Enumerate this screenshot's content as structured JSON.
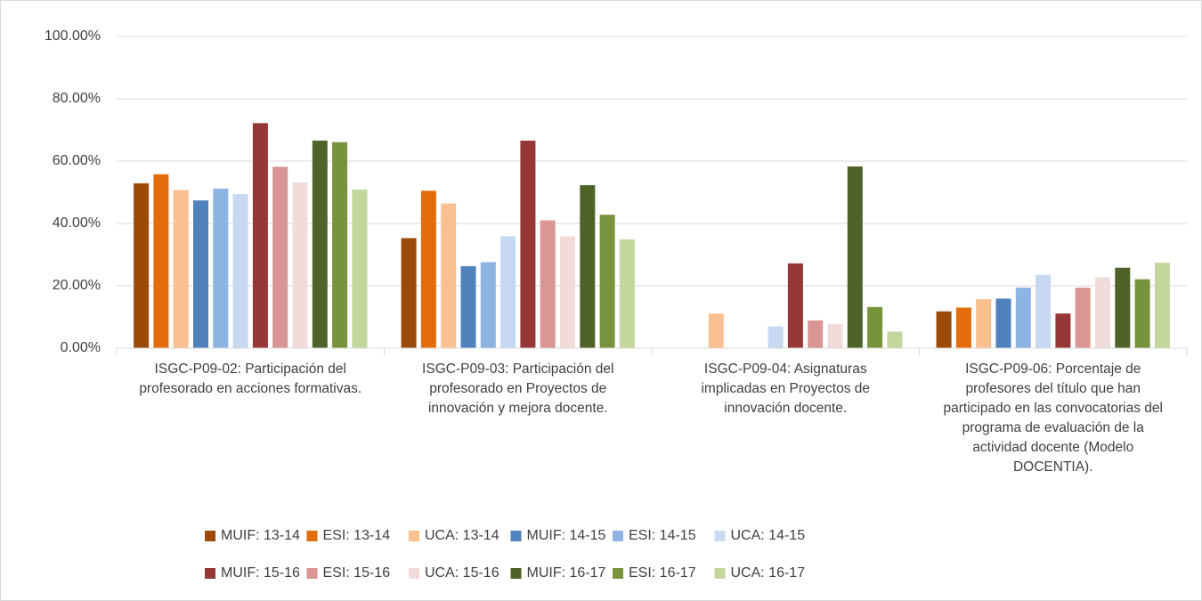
{
  "chart_data": {
    "type": "bar",
    "categories": [
      "ISGC-P09-02: Participación del profesorado en acciones formativas.",
      "ISGC-P09-03: Participación del profesorado en Proyectos de innovación y mejora docente.",
      "ISGC-P09-04: Asignaturas implicadas en Proyectos de innovación docente.",
      "ISGC-P09-06: Porcentaje de profesores del título que han participado en las convocatorias del programa de evaluación de la actividad docente (Modelo DOCENTIA)."
    ],
    "series": [
      {
        "name": "MUIF: 13-14",
        "color": "#9c4a0a",
        "values": [
          52.9,
          35.3,
          null,
          11.8
        ]
      },
      {
        "name": "ESI: 13-14",
        "color": "#e46c0a",
        "values": [
          55.8,
          50.5,
          null,
          13.0
        ]
      },
      {
        "name": "UCA: 13-14",
        "color": "#fac090",
        "values": [
          50.7,
          46.4,
          11.1,
          15.7
        ]
      },
      {
        "name": "MUIF: 14-15",
        "color": "#4f81bd",
        "values": [
          47.4,
          26.3,
          null,
          15.9
        ]
      },
      {
        "name": "ESI: 14-15",
        "color": "#8eb4e3",
        "values": [
          51.2,
          27.6,
          null,
          19.4
        ]
      },
      {
        "name": "UCA: 14-15",
        "color": "#c6d9f1",
        "values": [
          49.4,
          35.9,
          7.0,
          23.5
        ]
      },
      {
        "name": "MUIF: 15-16",
        "color": "#953735",
        "values": [
          72.2,
          66.6,
          27.2,
          11.1
        ]
      },
      {
        "name": "ESI: 15-16",
        "color": "#d99694",
        "values": [
          58.2,
          41.0,
          8.9,
          19.4
        ]
      },
      {
        "name": "UCA: 15-16",
        "color": "#f2dcdb",
        "values": [
          53.2,
          35.9,
          7.8,
          22.8
        ]
      },
      {
        "name": "MUIF: 16-17",
        "color": "#4f6228",
        "values": [
          66.6,
          52.3,
          58.3,
          25.8
        ]
      },
      {
        "name": "ESI: 16-17",
        "color": "#77933c",
        "values": [
          66.1,
          42.8,
          13.2,
          22.1
        ]
      },
      {
        "name": "UCA: 16-17",
        "color": "#c3d69b",
        "values": [
          50.9,
          34.9,
          5.3,
          27.4
        ]
      }
    ],
    "ylim": [
      0,
      100
    ],
    "yticks": [
      {
        "value": 0,
        "label": "0.00%"
      },
      {
        "value": 20,
        "label": "20.00%"
      },
      {
        "value": 40,
        "label": "40.00%"
      },
      {
        "value": 60,
        "label": "60.00%"
      },
      {
        "value": 80,
        "label": "80.00%"
      },
      {
        "value": 100,
        "label": "100.00%"
      }
    ],
    "grid": true,
    "legend": "bottom"
  }
}
